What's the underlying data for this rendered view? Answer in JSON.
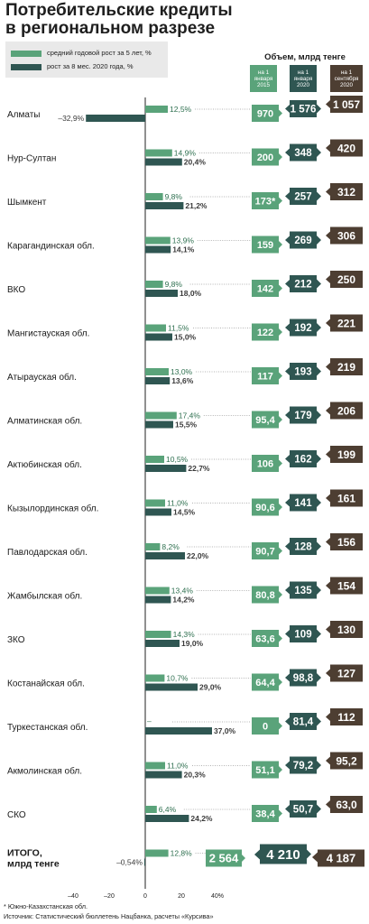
{
  "title_line1": "Потребительские кредиты",
  "title_line2": "в региональном разрезе",
  "legend": {
    "series1": "средний годовой рост за 5 лет, %",
    "series2": "рост за 8 мес. 2020 года, %"
  },
  "columns_title": "Объем, млрд тенге",
  "column_headers": [
    "на 1 января 2015",
    "на 1 января 2020",
    "на 1 сентября 2020"
  ],
  "colors": {
    "green": "#5aa37a",
    "dark": "#2f5652",
    "brown": "#4d3e32",
    "legend_bg": "#e9e9e9"
  },
  "footnote": "* Южно-Казахстанская обл.",
  "source": "Источник: Статистический бюллетень Нацбанка, расчеты «Курсива»",
  "chart_data": {
    "type": "bar",
    "orientation": "horizontal",
    "categories": [
      "Алматы",
      "Нур-Султан",
      "Шымкент",
      "Карагандинская обл.",
      "ВКО",
      "Мангистауская обл.",
      "Атырауская обл.",
      "Алматинская обл.",
      "Актюбинская обл.",
      "Кызылординская обл.",
      "Павлодарская обл.",
      "Жамбылская обл.",
      "ЗКО",
      "Костанайская обл.",
      "Туркестанская обл.",
      "Акмолинская обл.",
      "СКО",
      "ИТОГО, млрд тенге"
    ],
    "series": [
      {
        "name": "средний годовой рост за 5 лет, %",
        "values": [
          12.5,
          14.9,
          9.8,
          13.9,
          9.8,
          11.5,
          13.0,
          17.4,
          10.5,
          11.0,
          8.2,
          13.4,
          14.3,
          10.7,
          null,
          11.0,
          6.4,
          12.8
        ],
        "labels": [
          "12,5%",
          "14,9%",
          "9,8%",
          "13,9%",
          "9,8%",
          "11,5%",
          "13,0%",
          "17,4%",
          "10,5%",
          "11,0%",
          "8,2%",
          "13,4%",
          "14,3%",
          "10,7%",
          "–",
          "11,0%",
          "6,4%",
          "12,8%"
        ]
      },
      {
        "name": "рост за 8 мес. 2020 года, %",
        "values": [
          -32.9,
          20.4,
          21.2,
          14.1,
          18.0,
          15.0,
          13.6,
          15.5,
          22.7,
          14.5,
          22.0,
          14.2,
          19.0,
          29.0,
          37.0,
          20.3,
          24.2,
          -0.54
        ],
        "labels": [
          "–32,9%",
          "20,4%",
          "21,2%",
          "14,1%",
          "18,0%",
          "15,0%",
          "13,6%",
          "15,5%",
          "22,7%",
          "14,5%",
          "22,0%",
          "14,2%",
          "19,0%",
          "29,0%",
          "37,0%",
          "20,3%",
          "24,2%",
          "–0,54%"
        ]
      }
    ],
    "volumes": {
      "jan_2015": [
        "970",
        "200",
        "173*",
        "159",
        "142",
        "122",
        "117",
        "95,4",
        "106",
        "90,6",
        "90,7",
        "80,8",
        "63,6",
        "64,4",
        "0",
        "51,1",
        "38,4",
        "2 564"
      ],
      "jan_2020": [
        "1 576",
        "348",
        "257",
        "269",
        "212",
        "192",
        "193",
        "179",
        "162",
        "141",
        "128",
        "135",
        "109",
        "98,8",
        "81,4",
        "79,2",
        "50,7",
        "4 210"
      ],
      "sep_2020": [
        "1 057",
        "420",
        "312",
        "306",
        "250",
        "221",
        "219",
        "206",
        "199",
        "161",
        "156",
        "154",
        "130",
        "127",
        "112",
        "95,2",
        "63,0",
        "4 187"
      ]
    },
    "xlim": [
      -40,
      40
    ],
    "xticks": [
      "–40",
      "–20",
      "0",
      "20",
      "40%"
    ]
  }
}
